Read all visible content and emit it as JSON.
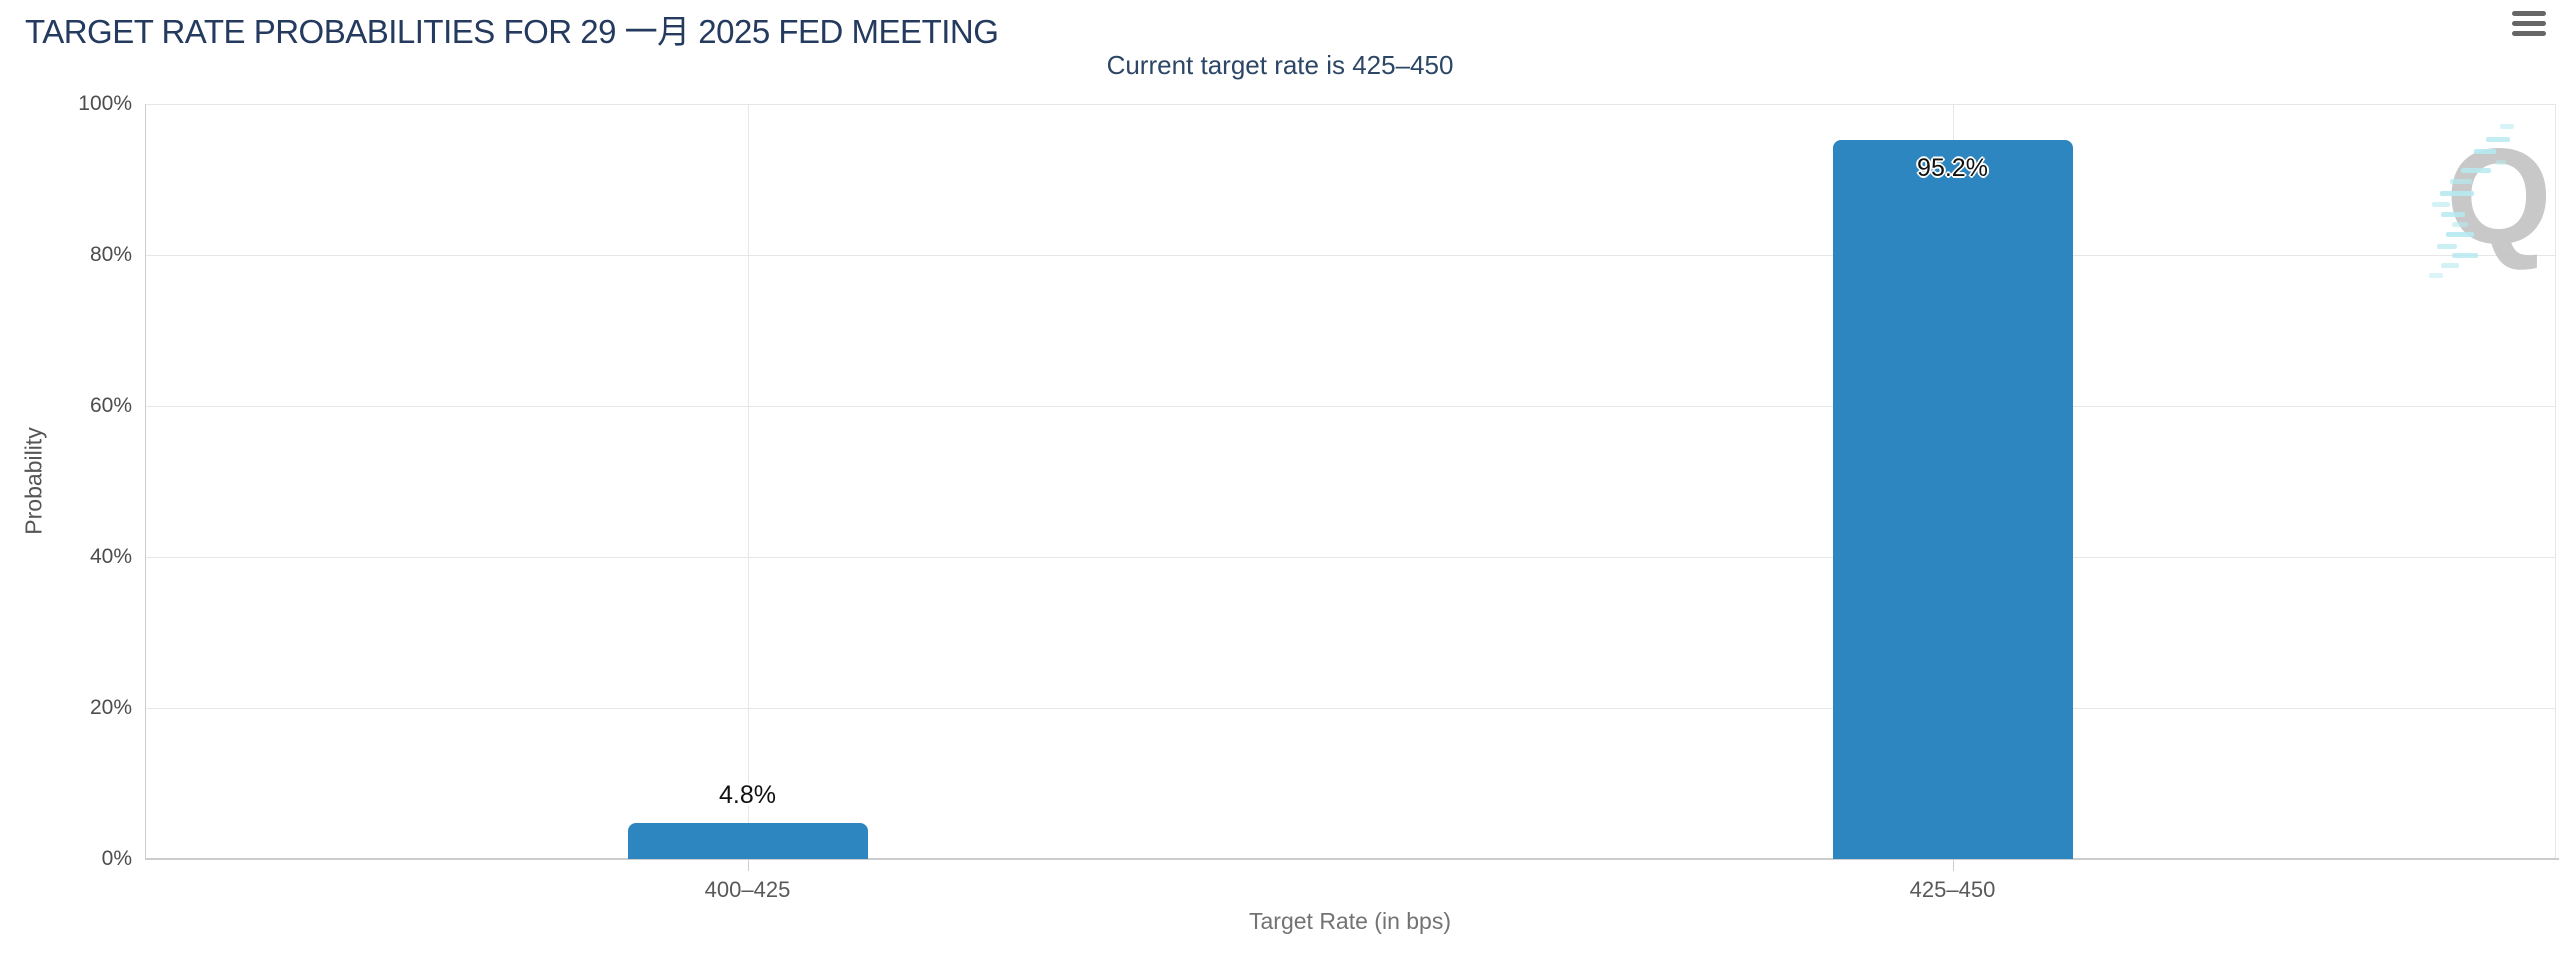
{
  "header": {
    "title": "TARGET RATE PROBABILITIES FOR 29 一月 2025 FED MEETING",
    "menu_icon": "hamburger-menu"
  },
  "chart_data": {
    "type": "bar",
    "title": "TARGET RATE PROBABILITIES FOR 29 一月 2025 FED MEETING",
    "subtitle": "Current target rate is 425–450",
    "categories": [
      "400–425",
      "425–450"
    ],
    "values": [
      4.8,
      95.2
    ],
    "data_labels": [
      "4.8%",
      "95.2%"
    ],
    "xlabel": "Target Rate (in bps)",
    "ylabel": "Probability",
    "ylim": [
      0,
      100
    ],
    "ytick_labels": [
      "0%",
      "20%",
      "40%",
      "60%",
      "80%",
      "100%"
    ],
    "grid": true,
    "legend_position": "none",
    "bar_color": "#2d86c0",
    "title_color": "#243a5e",
    "watermark_letter": "Q",
    "watermark_dash_color": "#b5e9f0"
  }
}
